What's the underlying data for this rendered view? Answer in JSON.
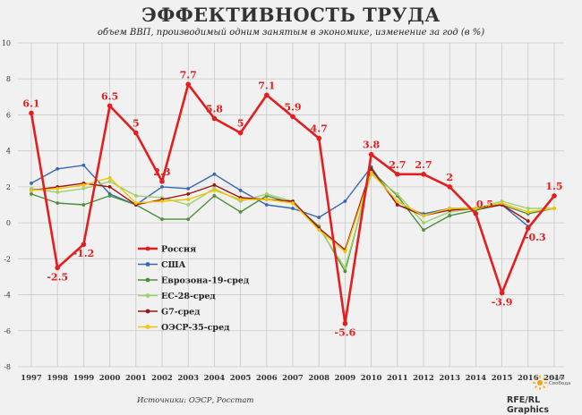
{
  "header": {
    "title": "ЭФФЕКТИВНОСТЬ ТРУДА",
    "subtitle": "объем ВВП, производимый одним занятым в экономике, изменение за год (в %)"
  },
  "footer": {
    "source": "Источники: ОЭСР, Росстат",
    "credit": "RFE/RL Graphics",
    "logo_text": "Радио Свобода"
  },
  "colors": {
    "russia": "#e41e1e",
    "usa": "#3a68b0",
    "euro19": "#4e8f3a",
    "eu28": "#9dd16a",
    "g7": "#a11414",
    "oecd35": "#f2c400",
    "grid": "#c9c9c9",
    "background": "#f1f1f1"
  },
  "chart_data": {
    "type": "line",
    "title": "ЭФФЕКТИВНОСТЬ ТРУДА",
    "subtitle": "объем ВВП, производимый одним занятым в экономике, изменение за год (в %)",
    "xlabel": "",
    "ylabel": "",
    "x": [
      "1997",
      "1998",
      "1999",
      "2000",
      "2001",
      "2002",
      "2003",
      "2004",
      "2005",
      "2006",
      "2007",
      "2008",
      "2009",
      "2010",
      "2011",
      "2012",
      "2013",
      "2014",
      "2015",
      "2016",
      "2017"
    ],
    "ylim": [
      -8,
      10
    ],
    "yticks": [
      -8,
      -6,
      -4,
      -2,
      0,
      2,
      4,
      6,
      8,
      10
    ],
    "grid": true,
    "legend_position": "lower-left",
    "series": [
      {
        "name": "Россия",
        "color_key": "russia",
        "values": [
          6.1,
          -2.5,
          -1.2,
          6.5,
          5,
          2.3,
          7.7,
          5.8,
          5,
          7.1,
          5.9,
          4.7,
          -5.6,
          3.8,
          2.7,
          2.7,
          2,
          0.5,
          -3.9,
          -0.3,
          1.5
        ],
        "labels": [
          "6.1",
          "-2.5",
          "-1.2",
          "6.5",
          "5",
          "2.3",
          "7.7",
          "5.8",
          "5",
          "7.1",
          "5.9",
          "4.7",
          "-5.6",
          "3.8",
          "2.7",
          "2.7",
          "2",
          "0.5",
          "-3.9",
          "-0.3",
          "1.5"
        ]
      },
      {
        "name": "США",
        "color_key": "usa",
        "values": [
          2.2,
          3.0,
          3.2,
          1.6,
          1.0,
          2.0,
          1.9,
          2.7,
          1.8,
          1.0,
          0.8,
          0.3,
          1.2,
          3.1,
          1.0,
          0.5,
          0.8,
          0.8,
          1.0,
          -0.2,
          null
        ]
      },
      {
        "name": "Еврозона-19-сред",
        "color_key": "euro19",
        "values": [
          1.6,
          1.1,
          1.0,
          1.5,
          1.0,
          0.2,
          0.2,
          1.5,
          0.6,
          1.5,
          1.1,
          -0.2,
          -2.7,
          2.9,
          1.5,
          -0.4,
          0.4,
          0.7,
          1.0,
          0.5,
          0.8
        ]
      },
      {
        "name": "ЕС-28-сред",
        "color_key": "eu28",
        "values": [
          1.9,
          1.7,
          1.9,
          2.3,
          1.5,
          1.4,
          1.0,
          1.9,
          1.2,
          1.6,
          1.2,
          -0.3,
          -2.5,
          2.7,
          1.6,
          0.0,
          0.6,
          0.8,
          1.2,
          0.8,
          0.8
        ]
      },
      {
        "name": "G7-сред",
        "color_key": "g7",
        "values": [
          1.8,
          2.0,
          2.2,
          2.0,
          1.0,
          1.3,
          1.6,
          2.1,
          1.4,
          1.3,
          1.2,
          -0.3,
          -1.5,
          3.0,
          1.0,
          0.4,
          0.7,
          0.8,
          1.0,
          0.1,
          null
        ]
      },
      {
        "name": "ОЭСР-35-сред",
        "color_key": "oecd35",
        "values": [
          1.8,
          1.9,
          2.1,
          2.5,
          1.1,
          1.2,
          1.3,
          1.8,
          1.3,
          1.3,
          1.1,
          -0.4,
          -1.6,
          2.8,
          1.2,
          0.4,
          0.8,
          0.8,
          1.1,
          0.6,
          0.8
        ]
      }
    ]
  }
}
